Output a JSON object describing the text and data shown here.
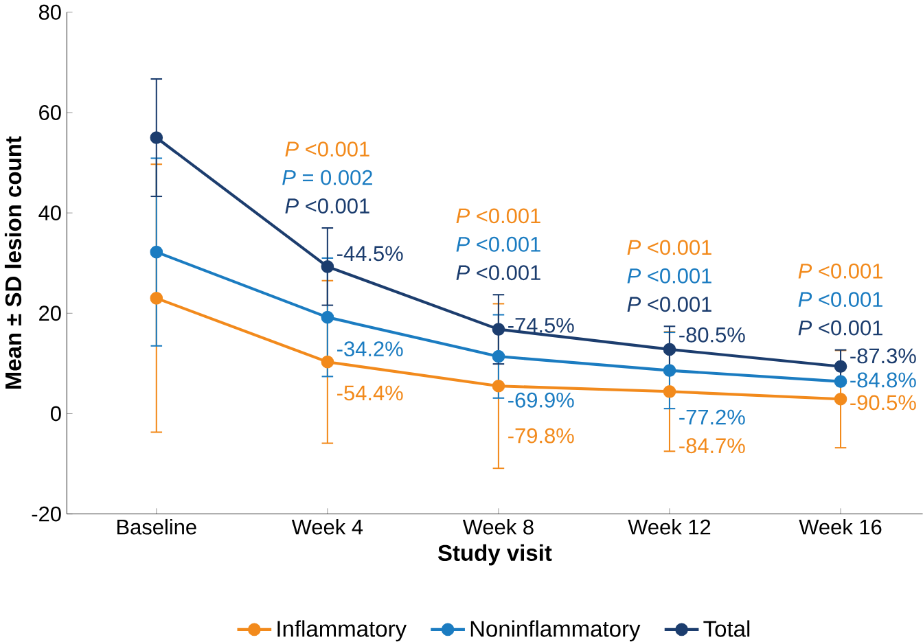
{
  "chart_data": {
    "type": "line",
    "xlabel": "Study visit",
    "ylabel": "Mean ± SD lesion count",
    "categories": [
      "Baseline",
      "Week 4",
      "Week 8",
      "Week 12",
      "Week 16"
    ],
    "series": [
      {
        "name": "Inflammatory",
        "color": "#f28a1c",
        "values": [
          23.0,
          10.3,
          5.5,
          4.4,
          2.9
        ],
        "errors": [
          26.7,
          16.2,
          16.4,
          11.9,
          9.7
        ]
      },
      {
        "name": "Noninflammatory",
        "color": "#1b7cc1",
        "values": [
          32.2,
          19.2,
          11.4,
          8.6,
          6.4
        ],
        "errors": [
          18.7,
          11.8,
          8.3,
          7.6,
          null
        ]
      },
      {
        "name": "Total",
        "color": "#1c3d6e",
        "values": [
          55.0,
          29.3,
          16.8,
          12.8,
          9.4
        ],
        "errors": [
          11.7,
          7.7,
          6.9,
          4.6,
          3.3
        ]
      }
    ],
    "ylim": [
      -20,
      80
    ],
    "yticks": [
      -20,
      0,
      20,
      40,
      60,
      80
    ],
    "grid": false,
    "legend": "bottom",
    "marker": "circle",
    "line_style": "solid",
    "annotations": [
      "*P* <0.001",
      "*P* = 0.002",
      "*P* <0.001",
      {
        "text": "-44.5%",
        "x": "Week 4",
        "y": 31.9
      },
      {
        "text": "-34.2%",
        "x": "Week 4",
        "y": 12.9
      },
      {
        "text": "-54.4%",
        "x": "Week 4",
        "y": 4.1
      },
      "*P* <0.001",
      "*P* <0.001",
      "*P* <0.001",
      {
        "text": "-74.5%",
        "x": "Week 8",
        "y": 17.6
      },
      {
        "text": "-69.9%",
        "x": "Week 8",
        "y": 2.7
      },
      {
        "text": "-79.8%",
        "x": "Week 8",
        "y": -4.4
      },
      "*P* <0.001",
      "*P* <0.001",
      "*P* <0.001",
      {
        "text": "-80.5%",
        "x": "Week 12",
        "y": 15.7
      },
      {
        "text": "-77.2%",
        "x": "Week 12",
        "y": -0.7
      },
      {
        "text": "-84.7%",
        "x": "Week 12",
        "y": -6.4
      },
      "*P* <0.001",
      "*P* <0.001",
      "*P* <0.001",
      {
        "text": "-87.3%",
        "x": "Week 16",
        "y": 11.5
      },
      {
        "text": "-84.8%",
        "x": "Week 16",
        "y": 6.7
      },
      {
        "text": "-90.5%",
        "x": "Week 16",
        "y": 2.2
      }
    ]
  }
}
